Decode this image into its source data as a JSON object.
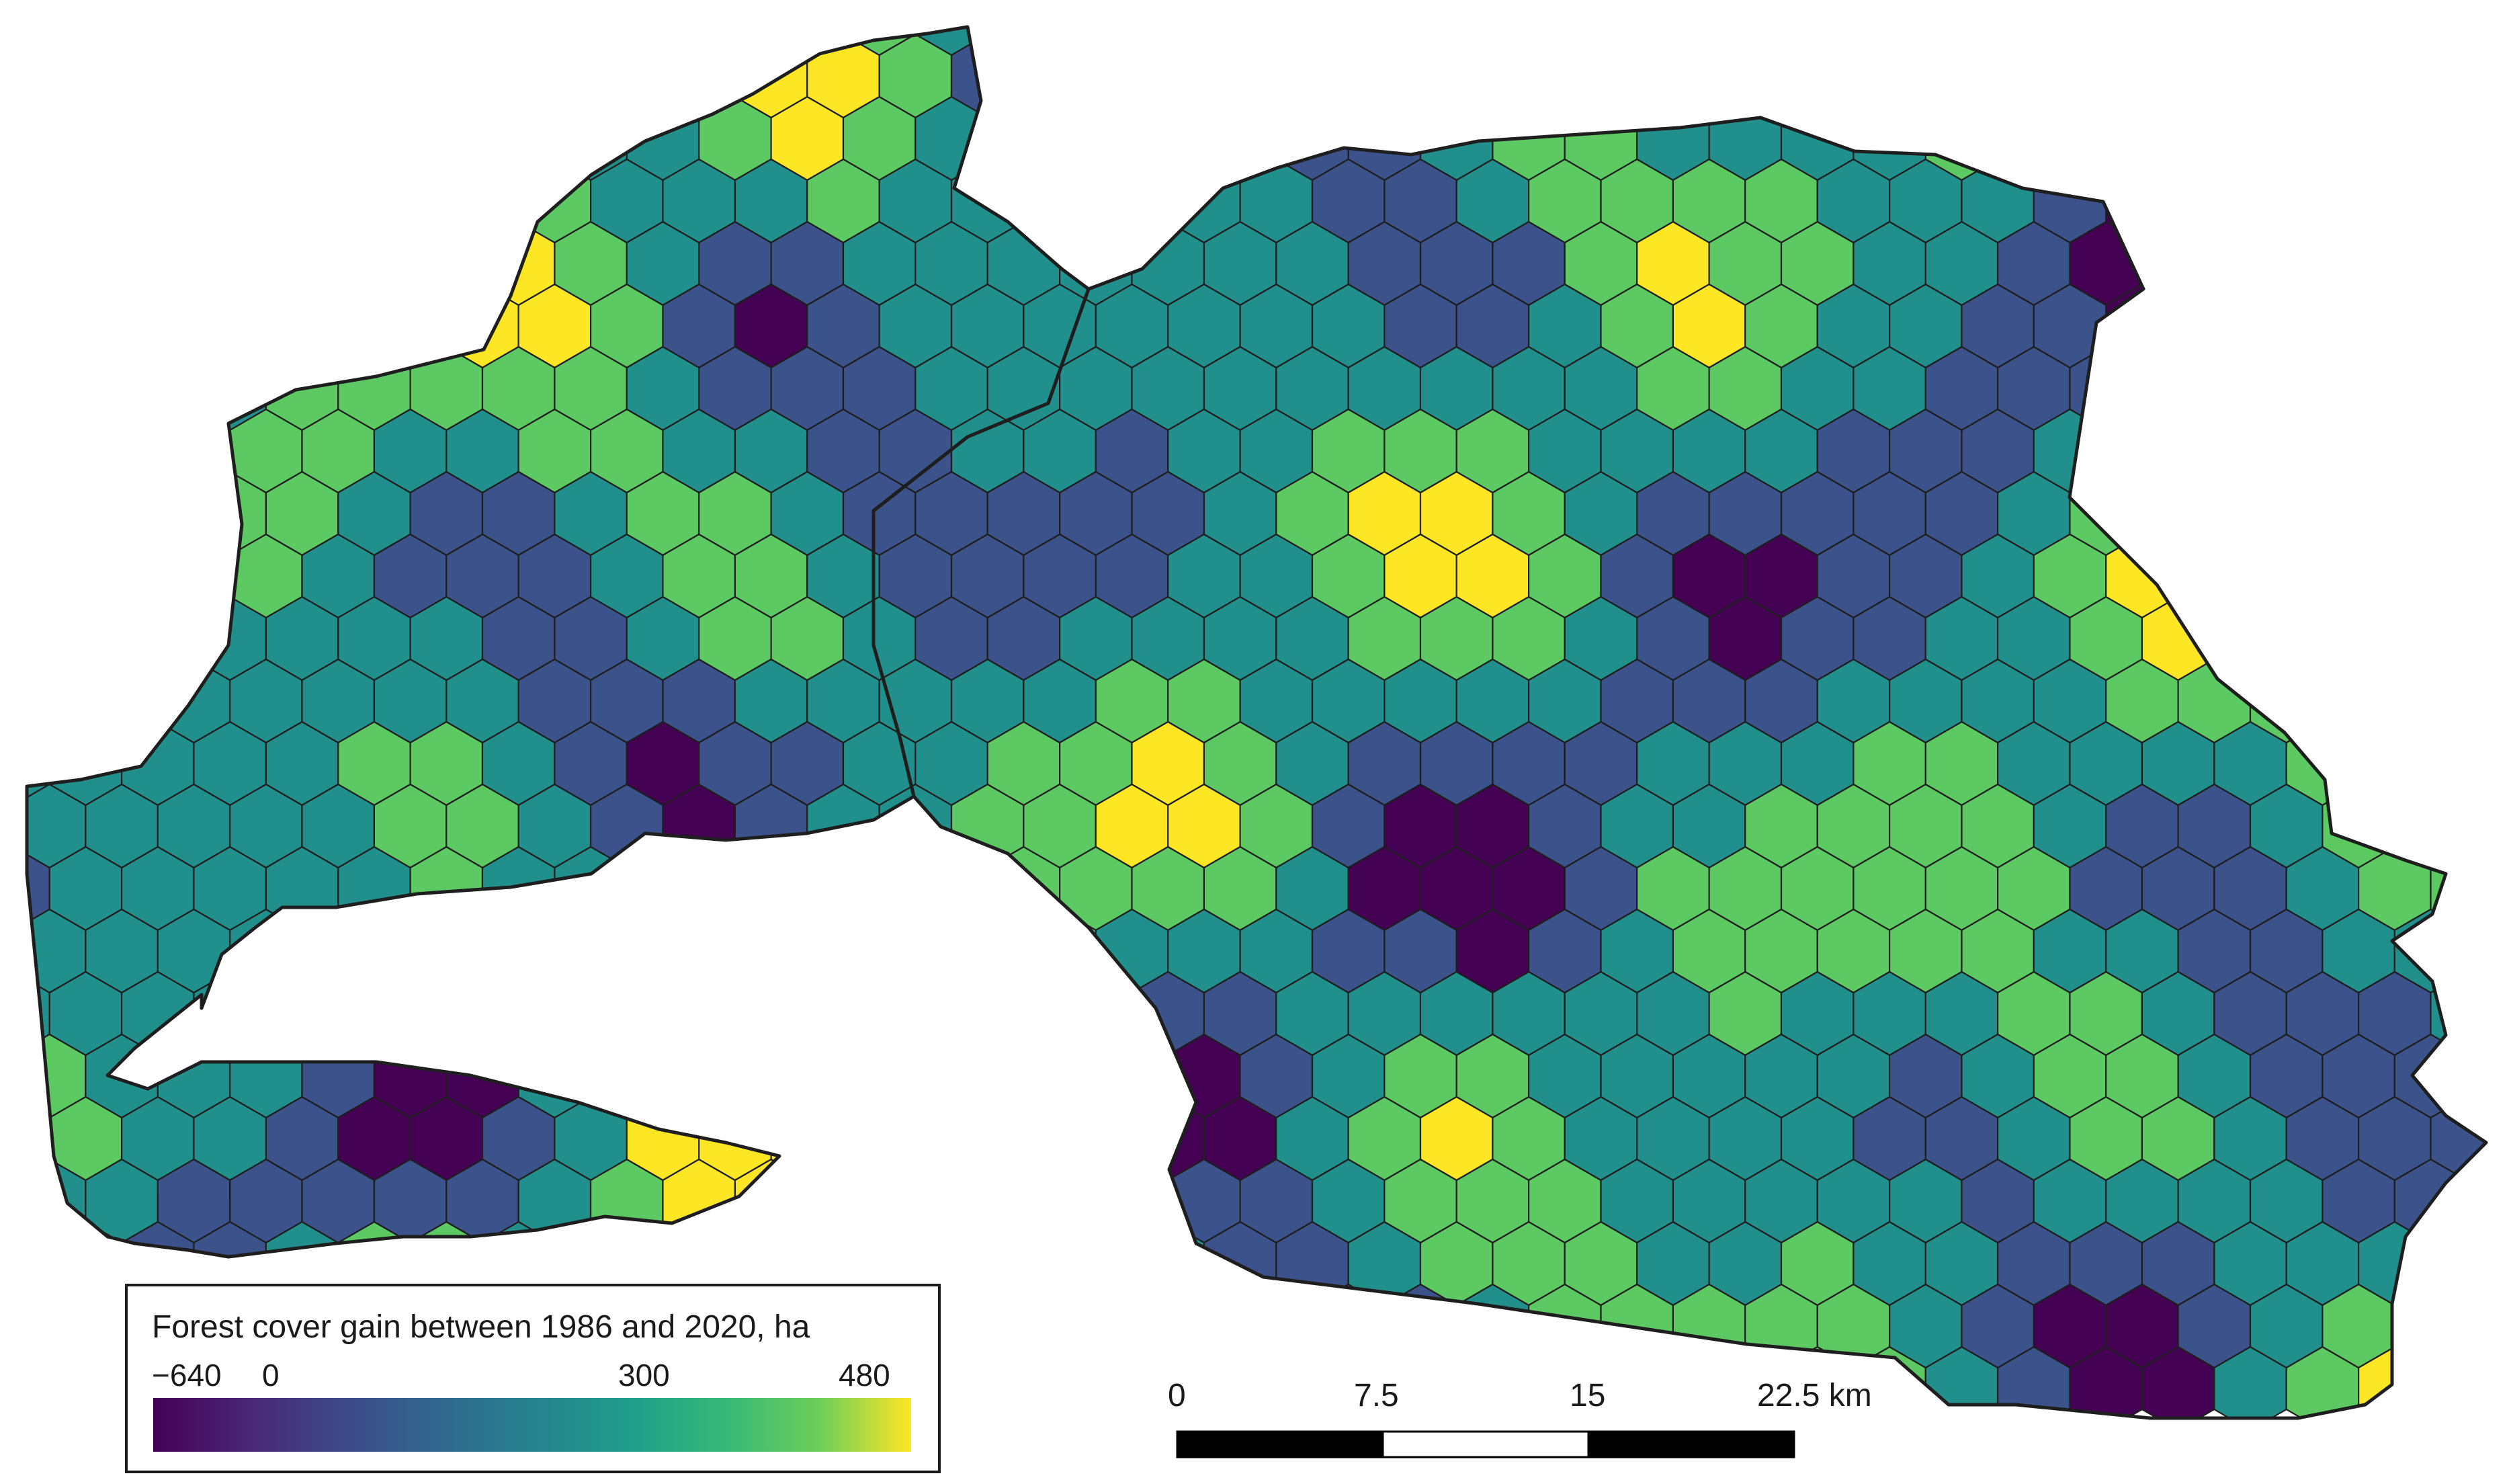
{
  "legend": {
    "title": "Forest cover gain between 1986 and 2020, ha",
    "ticks": [
      {
        "label": "−640",
        "value": -640
      },
      {
        "label": "0",
        "value": 0
      },
      {
        "label": "300",
        "value": 300
      },
      {
        "label": "480",
        "value": 480
      }
    ],
    "range": [
      -640,
      480
    ],
    "colormap": "viridis",
    "colors": [
      "#440154",
      "#3b528b",
      "#21908c",
      "#5dc963",
      "#fde725"
    ]
  },
  "scale_bar": {
    "labels": [
      "0",
      "7.5",
      "15",
      "22.5 km"
    ],
    "values_km": [
      0,
      7.5,
      15,
      22.5
    ],
    "segment_colors": [
      "#000000",
      "#ffffff",
      "#000000"
    ]
  },
  "map": {
    "cell_shape": "hexagon",
    "class_colors": {
      "dark_purple": "#440154",
      "blue": "#3b528b",
      "teal": "#21908c",
      "green": "#5dc963",
      "yellow": "#fde725"
    }
  }
}
